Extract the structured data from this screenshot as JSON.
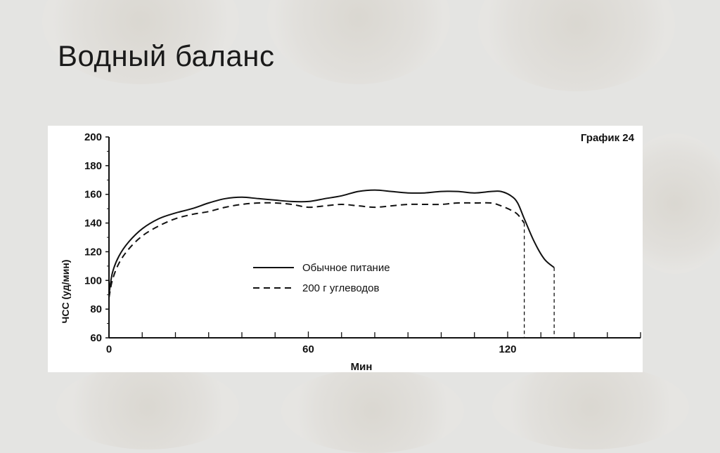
{
  "slide": {
    "title": "Водный баланс"
  },
  "chart_data": {
    "type": "line",
    "title": "График 24",
    "xlabel": "Мин",
    "ylabel": "ЧСС (уд/мин)",
    "xlim": [
      0,
      160
    ],
    "ylim": [
      60,
      200
    ],
    "x_ticks": [
      0,
      60,
      120
    ],
    "y_ticks": [
      60,
      80,
      100,
      120,
      140,
      160,
      180,
      200
    ],
    "grid": false,
    "legend_position": "center",
    "series": [
      {
        "name": "Обычное питание",
        "style": "solid",
        "x": [
          0,
          1,
          3,
          6,
          10,
          15,
          20,
          25,
          30,
          35,
          40,
          45,
          50,
          55,
          60,
          65,
          70,
          75,
          80,
          85,
          90,
          95,
          100,
          105,
          110,
          115,
          118,
          121,
          123,
          125,
          128,
          131,
          134
        ],
        "y": [
          90,
          105,
          117,
          127,
          136,
          143,
          147,
          150,
          154,
          157,
          158,
          157,
          156,
          155,
          155,
          157,
          159,
          162,
          163,
          162,
          161,
          161,
          162,
          162,
          161,
          162,
          162,
          159,
          154,
          143,
          127,
          115,
          109
        ]
      },
      {
        "name": "200 г углеводов",
        "style": "dashed",
        "x": [
          0,
          1,
          3,
          6,
          10,
          15,
          20,
          25,
          30,
          35,
          40,
          45,
          50,
          55,
          60,
          65,
          70,
          75,
          80,
          85,
          90,
          95,
          100,
          105,
          110,
          115,
          118,
          121,
          123,
          125
        ],
        "y": [
          88,
          100,
          112,
          122,
          131,
          138,
          143,
          146,
          148,
          151,
          153,
          154,
          154,
          153,
          151,
          152,
          153,
          152,
          151,
          152,
          153,
          153,
          153,
          154,
          154,
          154,
          152,
          149,
          146,
          140
        ]
      }
    ],
    "drop_lines": [
      {
        "series": "200 г углеводов",
        "x": 125
      },
      {
        "series": "Обычное питание",
        "x": 134
      }
    ]
  }
}
